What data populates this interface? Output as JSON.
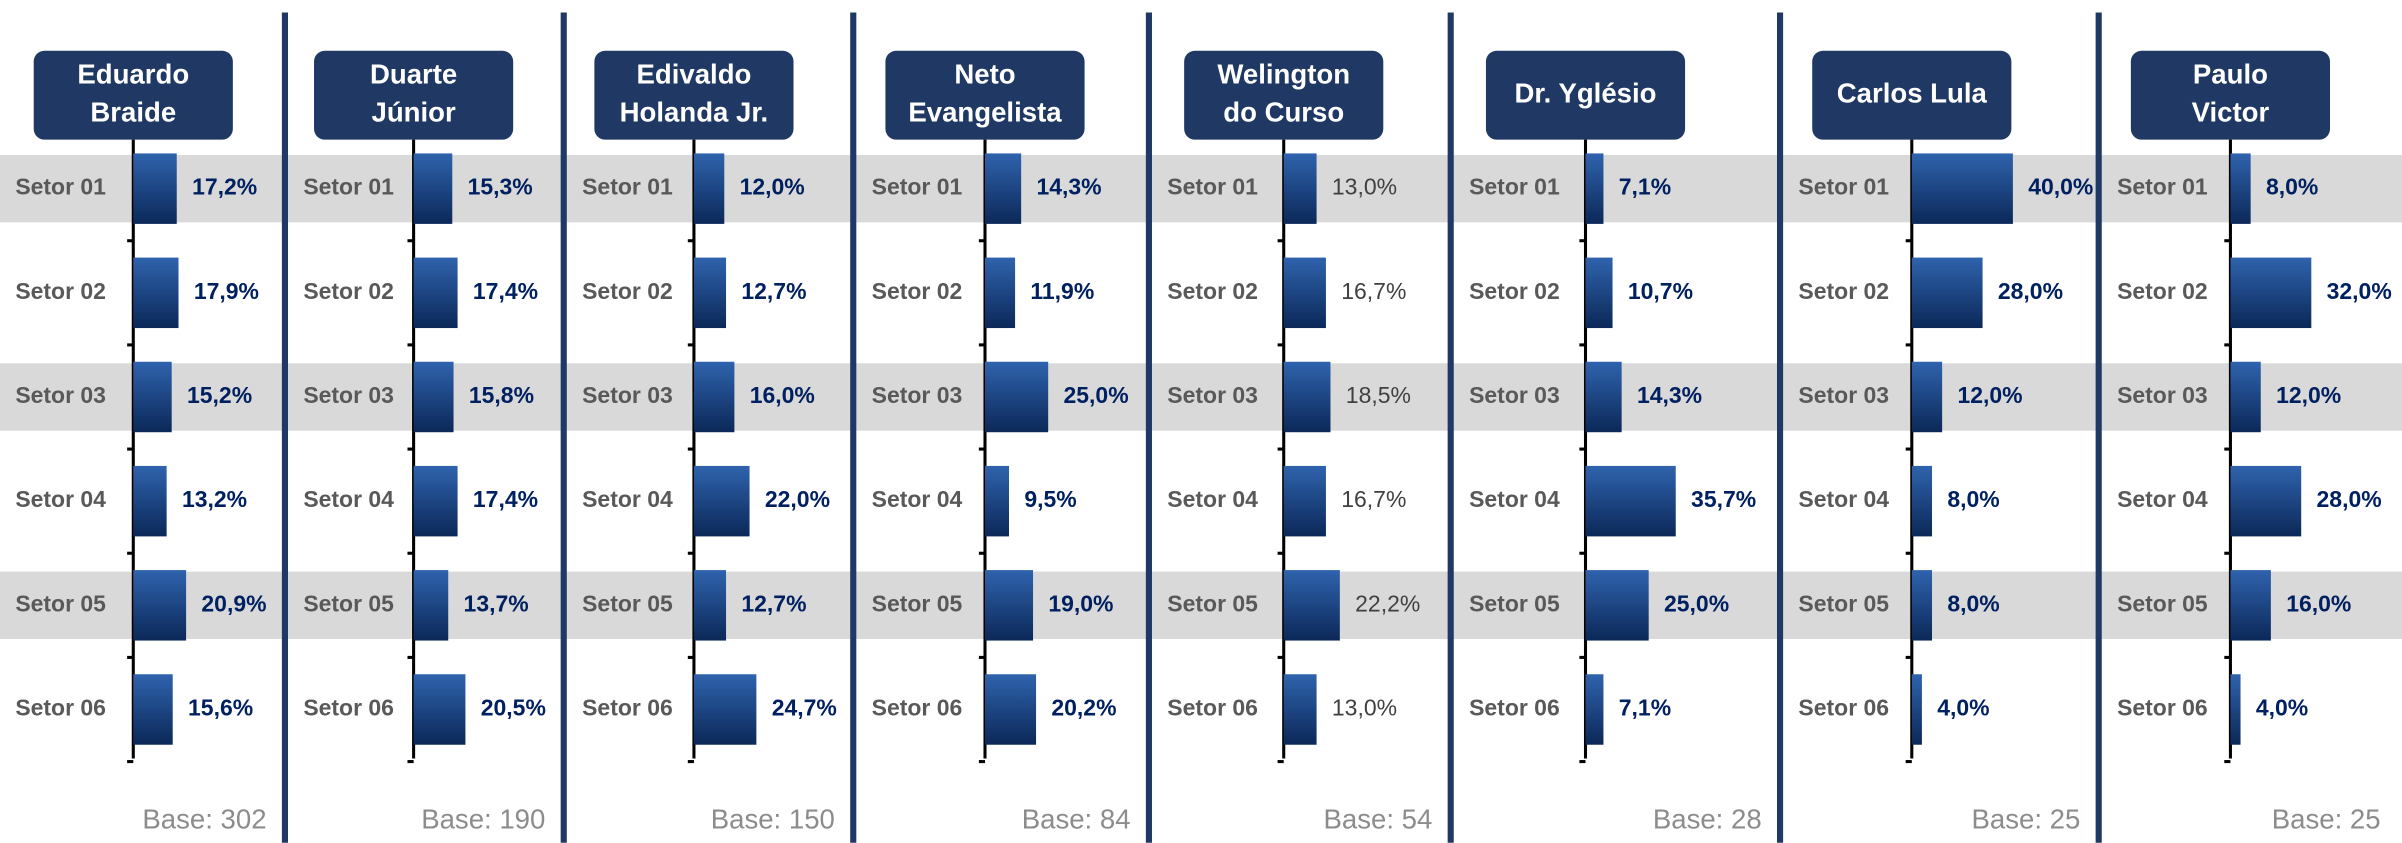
{
  "chart_data": [
    {
      "type": "bar",
      "title": [
        "Eduardo",
        "Braide"
      ],
      "categories": [
        "Setor 01",
        "Setor 02",
        "Setor 03",
        "Setor 04",
        "Setor 05",
        "Setor 06"
      ],
      "values": [
        17.2,
        17.9,
        15.2,
        13.2,
        20.9,
        15.6
      ],
      "value_labels": [
        "17,2%",
        "17,9%",
        "15,2%",
        "13,2%",
        "20,9%",
        "15,6%"
      ],
      "note": "Base: 302",
      "color": "#1a4a8e",
      "label_color": "#002060"
    },
    {
      "type": "bar",
      "title": [
        "Duarte",
        "Júnior"
      ],
      "categories": [
        "Setor 01",
        "Setor 02",
        "Setor 03",
        "Setor 04",
        "Setor 05",
        "Setor 06"
      ],
      "values": [
        15.3,
        17.4,
        15.8,
        17.4,
        13.7,
        20.5
      ],
      "value_labels": [
        "15,3%",
        "17,4%",
        "15,8%",
        "17,4%",
        "13,7%",
        "20,5%"
      ],
      "note": "Base: 190",
      "color": "#1a4a8e",
      "label_color": "#002060"
    },
    {
      "type": "bar",
      "title": [
        "Edivaldo",
        "Holanda Jr."
      ],
      "categories": [
        "Setor 01",
        "Setor 02",
        "Setor 03",
        "Setor 04",
        "Setor 05",
        "Setor 06"
      ],
      "values": [
        12.0,
        12.7,
        16.0,
        22.0,
        12.7,
        24.7
      ],
      "value_labels": [
        "12,0%",
        "12,7%",
        "16,0%",
        "22,0%",
        "12,7%",
        "24,7%"
      ],
      "note": "Base: 150",
      "color": "#1a4a8e",
      "label_color": "#002060"
    },
    {
      "type": "bar",
      "title": [
        "Neto",
        "Evangelista"
      ],
      "categories": [
        "Setor 01",
        "Setor 02",
        "Setor 03",
        "Setor 04",
        "Setor 05",
        "Setor 06"
      ],
      "values": [
        14.3,
        11.9,
        25.0,
        9.5,
        19.0,
        20.2
      ],
      "value_labels": [
        "14,3%",
        "11,9%",
        "25,0%",
        "9,5%",
        "19,0%",
        "20,2%"
      ],
      "note": "Base: 84",
      "color": "#1a4a8e",
      "label_color": "#002060"
    },
    {
      "type": "bar",
      "title": [
        "Welington",
        "do Curso"
      ],
      "categories": [
        "Setor 01",
        "Setor 02",
        "Setor 03",
        "Setor 04",
        "Setor 05",
        "Setor 06"
      ],
      "values": [
        13.0,
        16.7,
        18.5,
        16.7,
        22.2,
        13.0
      ],
      "value_labels": [
        "13,0%",
        "16,7%",
        "18,5%",
        "16,7%",
        "22,2%",
        "13,0%"
      ],
      "note": "Base: 54",
      "color": "#1a4a8e",
      "label_color": "#404040"
    },
    {
      "type": "bar",
      "title": [
        "Dr. Yglésio"
      ],
      "categories": [
        "Setor 01",
        "Setor 02",
        "Setor 03",
        "Setor 04",
        "Setor 05",
        "Setor 06"
      ],
      "values": [
        7.1,
        10.7,
        14.3,
        35.7,
        25.0,
        7.1
      ],
      "value_labels": [
        "7,1%",
        "10,7%",
        "14,3%",
        "35,7%",
        "25,0%",
        "7,1%"
      ],
      "note": "Base: 28",
      "color": "#1a4a8e",
      "label_color": "#002060"
    },
    {
      "type": "bar",
      "title": [
        "Carlos Lula"
      ],
      "categories": [
        "Setor 01",
        "Setor 02",
        "Setor 03",
        "Setor 04",
        "Setor 05",
        "Setor 06"
      ],
      "values": [
        40.0,
        28.0,
        12.0,
        8.0,
        8.0,
        4.0
      ],
      "value_labels": [
        "40,0%",
        "28,0%",
        "12,0%",
        "8,0%",
        "8,0%",
        "4,0%"
      ],
      "note": "Base: 25",
      "color": "#1a4a8e",
      "label_color": "#002060"
    },
    {
      "type": "bar",
      "title": [
        "Paulo",
        "Victor"
      ],
      "categories": [
        "Setor 01",
        "Setor 02",
        "Setor 03",
        "Setor 04",
        "Setor 05",
        "Setor 06"
      ],
      "values": [
        8.0,
        32.0,
        12.0,
        28.0,
        16.0,
        4.0
      ],
      "value_labels": [
        "8,0%",
        "32,0%",
        "12,0%",
        "28,0%",
        "16,0%",
        "4,0%"
      ],
      "note": "Base: 25",
      "color": "#1a4a8e",
      "label_color": "#002060"
    }
  ]
}
